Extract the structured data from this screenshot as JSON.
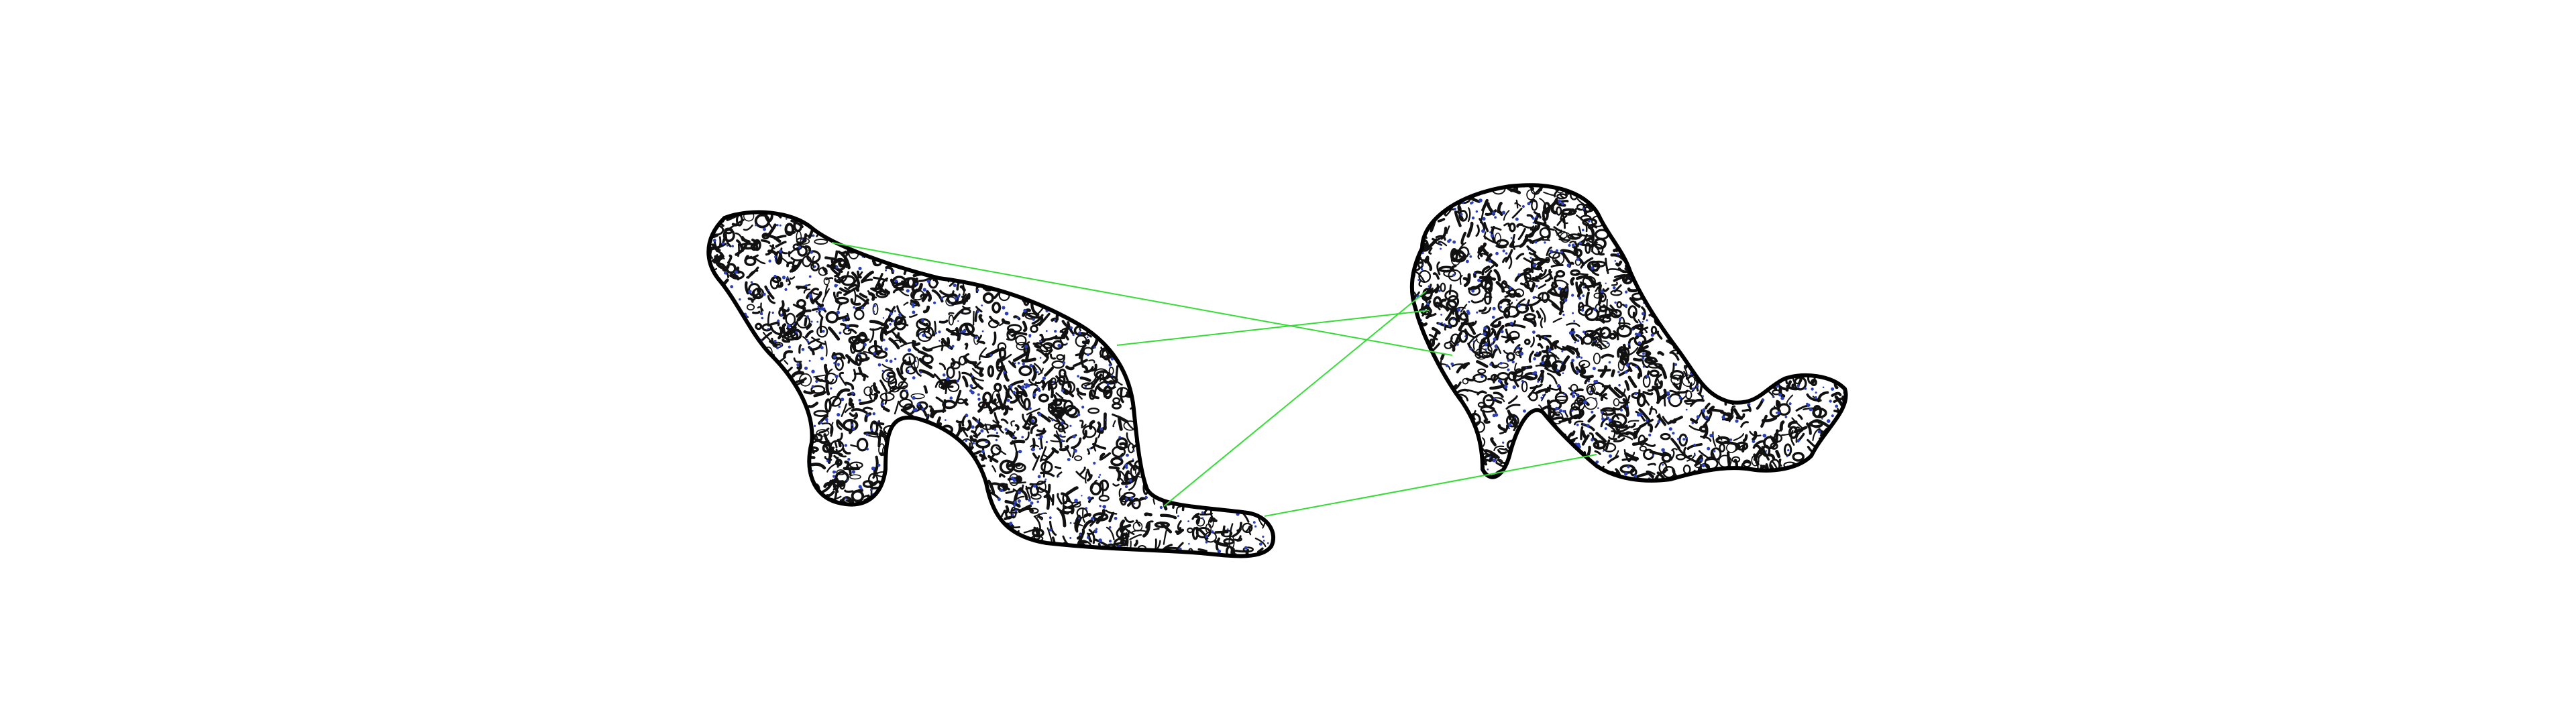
{
  "figure": {
    "background_color": "#ffffff",
    "outline_color": "#000000",
    "texture_color": "#111111",
    "keypoint_color": "#2a3fb8",
    "match_color": "#33dd33"
  },
  "shapes": [
    {
      "name": "left-silhouette"
    },
    {
      "name": "right-silhouette"
    }
  ],
  "matches": [
    {
      "id": 1
    },
    {
      "id": 2
    },
    {
      "id": 3
    },
    {
      "id": 4
    }
  ]
}
